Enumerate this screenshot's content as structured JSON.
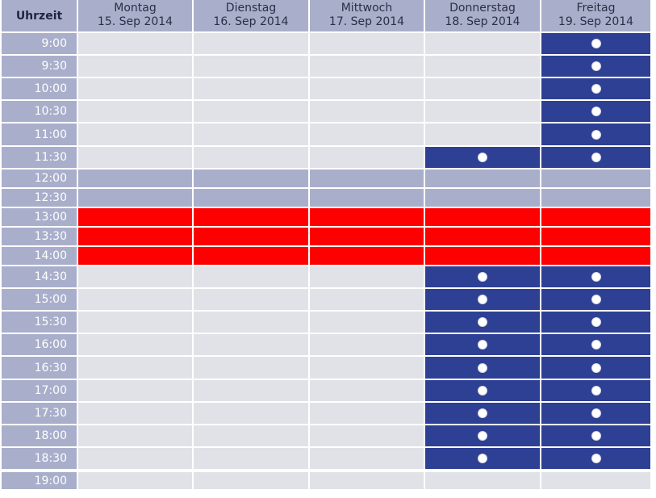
{
  "corner_label": "Uhrzeit",
  "days": [
    {
      "name": "Montag",
      "date": "15. Sep 2014"
    },
    {
      "name": "Dienstag",
      "date": "16. Sep 2014"
    },
    {
      "name": "Mittwoch",
      "date": "17. Sep 2014"
    },
    {
      "name": "Donnerstag",
      "date": "18. Sep 2014"
    },
    {
      "name": "Freitag",
      "date": "19. Sep 2014"
    }
  ],
  "times": [
    "9:00",
    "9:30",
    "10:00",
    "10:30",
    "11:00",
    "11:30",
    "12:00",
    "12:30",
    "13:00",
    "13:30",
    "14:00",
    "14:30",
    "15:00",
    "15:30",
    "16:00",
    "16:30",
    "17:00",
    "17:30",
    "18:00",
    "18:30",
    "19:00"
  ],
  "slots": [
    [
      "free",
      "free",
      "free",
      "free",
      "available"
    ],
    [
      "free",
      "free",
      "free",
      "free",
      "available"
    ],
    [
      "free",
      "free",
      "free",
      "free",
      "available"
    ],
    [
      "free",
      "free",
      "free",
      "free",
      "available"
    ],
    [
      "free",
      "free",
      "free",
      "free",
      "available"
    ],
    [
      "free",
      "free",
      "free",
      "available",
      "available"
    ],
    [
      "lunch",
      "lunch",
      "lunch",
      "lunch",
      "lunch"
    ],
    [
      "lunch",
      "lunch",
      "lunch",
      "lunch",
      "lunch"
    ],
    [
      "busy",
      "busy",
      "busy",
      "busy",
      "busy"
    ],
    [
      "busy",
      "busy",
      "busy",
      "busy",
      "busy"
    ],
    [
      "busy",
      "busy",
      "busy",
      "busy",
      "busy"
    ],
    [
      "free",
      "free",
      "free",
      "available",
      "available"
    ],
    [
      "free",
      "free",
      "free",
      "available",
      "available"
    ],
    [
      "free",
      "free",
      "free",
      "available",
      "available"
    ],
    [
      "free",
      "free",
      "free",
      "available",
      "available"
    ],
    [
      "free",
      "free",
      "free",
      "available",
      "available"
    ],
    [
      "free",
      "free",
      "free",
      "available",
      "available"
    ],
    [
      "free",
      "free",
      "free",
      "available",
      "available"
    ],
    [
      "free",
      "free",
      "free",
      "available",
      "available"
    ],
    [
      "free",
      "free",
      "free",
      "available",
      "available"
    ],
    [
      "free",
      "free",
      "free",
      "free",
      "free"
    ]
  ],
  "colors": {
    "header": "#a9afcb",
    "free": "#e1e2e7",
    "lunch": "#a9afcb",
    "busy": "#ff0000",
    "available": "#2e4094"
  }
}
